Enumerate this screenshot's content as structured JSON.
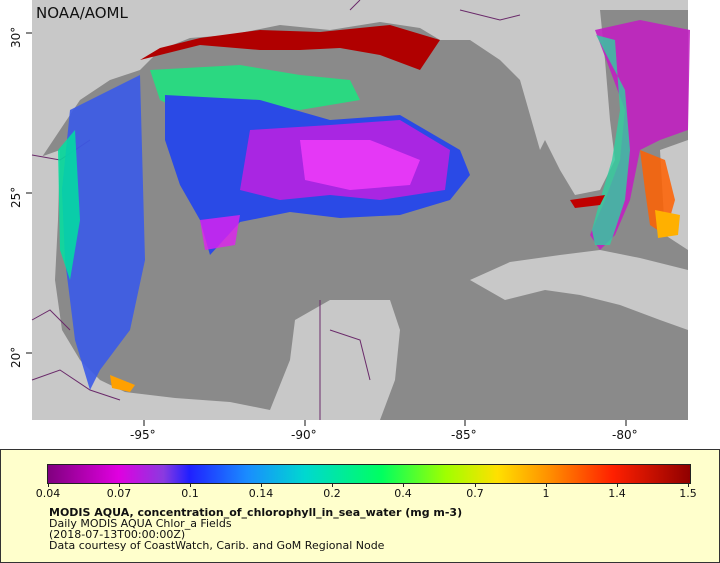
{
  "map": {
    "watermark": "NOAA/AOML",
    "lat_ticks": [
      "30°",
      "25°",
      "20°"
    ],
    "lon_ticks": [
      "-95°",
      "-90°",
      "-85°",
      "-80°"
    ],
    "colors": {
      "land": "#c8c8c8",
      "ocean_nodata": "#8a8a8a",
      "border": "#6a2a6a"
    }
  },
  "legend": {
    "colorbar_labels": [
      "0.04",
      "0.07",
      "0.1",
      "0.14",
      "0.2",
      "0.4",
      "0.7",
      "1",
      "1.4",
      "1.5"
    ],
    "title": "MODIS AQUA, concentration_of_chlorophyll_in_sea_water (mg m-3)",
    "line2": "Daily MODIS AQUA Chlor_a Fields",
    "line3": "(2018-07-13T00:00:00Z)",
    "line4": "Data courtesy of CoastWatch, Carib. and GoM Regional Node"
  }
}
